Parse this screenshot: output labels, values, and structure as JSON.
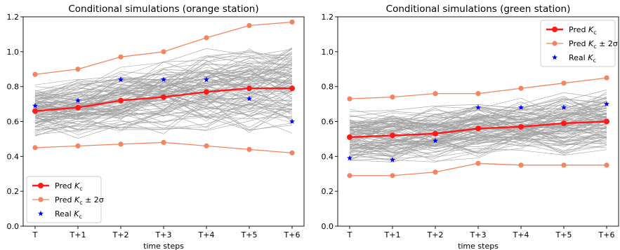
{
  "chart_data": [
    {
      "type": "line",
      "title": "Conditional simulations (orange station)",
      "xlabel": "time steps",
      "ylabel": "",
      "categories": [
        "T",
        "T+1",
        "T+2",
        "T+3",
        "T+4",
        "T+5",
        "T+6"
      ],
      "ylim": [
        0.0,
        1.2
      ],
      "yticks": [
        "0.0",
        "0.2",
        "0.4",
        "0.6",
        "0.8",
        "1.0",
        "1.2"
      ],
      "legend_position": "lower-left",
      "legend": {
        "pred": {
          "base": "Pred ",
          "sym": "K",
          "sub": "c",
          "tail": ""
        },
        "band": {
          "base": "Pred ",
          "sym": "K",
          "sub": "c",
          "tail": " ± 2σ"
        },
        "real": {
          "base": "Real ",
          "sym": "K",
          "sub": "c",
          "tail": ""
        }
      },
      "series": [
        {
          "key": "pred",
          "values": [
            0.66,
            0.68,
            0.72,
            0.74,
            0.77,
            0.79,
            0.79
          ],
          "color": "#ff1a1a"
        },
        {
          "key": "upper",
          "values": [
            0.87,
            0.9,
            0.97,
            1.0,
            1.08,
            1.15,
            1.17
          ],
          "color": "#f4845f"
        },
        {
          "key": "lower",
          "values": [
            0.45,
            0.46,
            0.47,
            0.48,
            0.46,
            0.44,
            0.42
          ],
          "color": "#f4845f"
        },
        {
          "key": "real",
          "values": [
            0.69,
            0.72,
            0.84,
            0.84,
            0.84,
            0.73,
            0.6
          ],
          "color": "#0000ff"
        }
      ],
      "simulations": {
        "count": 100,
        "color": "#a0a0a0",
        "center": [
          0.66,
          0.68,
          0.72,
          0.74,
          0.77,
          0.79,
          0.79
        ],
        "spread": [
          0.09,
          0.1,
          0.11,
          0.12,
          0.14,
          0.15,
          0.16
        ]
      }
    },
    {
      "type": "line",
      "title": "Conditional simulations (green station)",
      "xlabel": "time steps",
      "ylabel": "",
      "categories": [
        "T",
        "T+1",
        "T+2",
        "T+3",
        "T+4",
        "T+5",
        "T+6"
      ],
      "ylim": [
        0.0,
        1.2
      ],
      "yticks": [
        "0.0",
        "0.2",
        "0.4",
        "0.6",
        "0.8",
        "1.0",
        "1.2"
      ],
      "legend_position": "top-right",
      "legend": {
        "pred": {
          "base": "Pred ",
          "sym": "K",
          "sub": "c",
          "tail": ""
        },
        "band": {
          "base": "Pred ",
          "sym": "K",
          "sub": "c",
          "tail": " ± 2σ"
        },
        "real": {
          "base": "Real ",
          "sym": "K",
          "sub": "c",
          "tail": ""
        }
      },
      "series": [
        {
          "key": "pred",
          "values": [
            0.51,
            0.52,
            0.53,
            0.56,
            0.57,
            0.59,
            0.6
          ],
          "color": "#ff1a1a"
        },
        {
          "key": "upper",
          "values": [
            0.73,
            0.74,
            0.76,
            0.76,
            0.79,
            0.82,
            0.85
          ],
          "color": "#f4845f"
        },
        {
          "key": "lower",
          "values": [
            0.29,
            0.29,
            0.31,
            0.36,
            0.35,
            0.35,
            0.35
          ],
          "color": "#f4845f"
        },
        {
          "key": "real",
          "values": [
            0.39,
            0.38,
            0.49,
            0.68,
            0.68,
            0.68,
            0.7
          ],
          "color": "#0000ff"
        }
      ],
      "simulations": {
        "count": 100,
        "color": "#a0a0a0",
        "center": [
          0.51,
          0.52,
          0.53,
          0.56,
          0.57,
          0.59,
          0.6
        ],
        "spread": [
          0.1,
          0.1,
          0.1,
          0.1,
          0.1,
          0.11,
          0.11
        ]
      }
    }
  ]
}
